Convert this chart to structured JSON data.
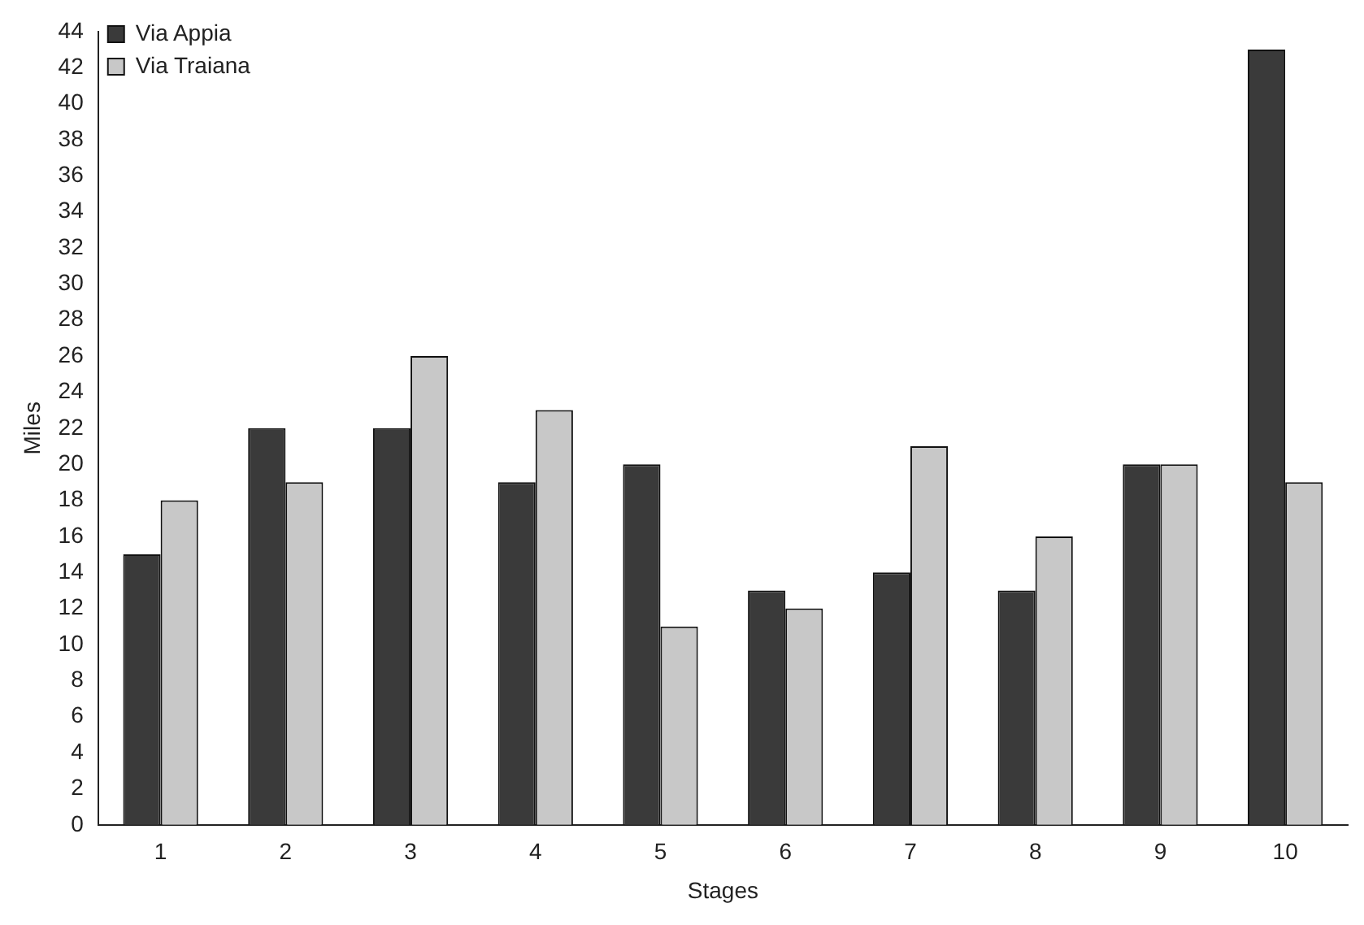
{
  "chart_data": {
    "type": "bar",
    "xlabel": "Stages",
    "ylabel": "Miles",
    "categories": [
      "1",
      "2",
      "3",
      "4",
      "5",
      "6",
      "7",
      "8",
      "9",
      "10"
    ],
    "series": [
      {
        "name": "Via Appia",
        "color": "#3a3a3a",
        "values": [
          15,
          22,
          22,
          19,
          20,
          13,
          14,
          13,
          20,
          43
        ]
      },
      {
        "name": "Via Traiana",
        "color": "#c8c8c8",
        "values": [
          18,
          19,
          26,
          23,
          11,
          12,
          21,
          16,
          20,
          19
        ]
      }
    ],
    "ylim": [
      0,
      44
    ],
    "yticks": [
      0,
      2,
      4,
      6,
      8,
      10,
      12,
      14,
      16,
      18,
      20,
      22,
      24,
      26,
      28,
      30,
      32,
      34,
      36,
      38,
      40,
      42,
      44
    ],
    "grid": false,
    "legend": "top left"
  }
}
